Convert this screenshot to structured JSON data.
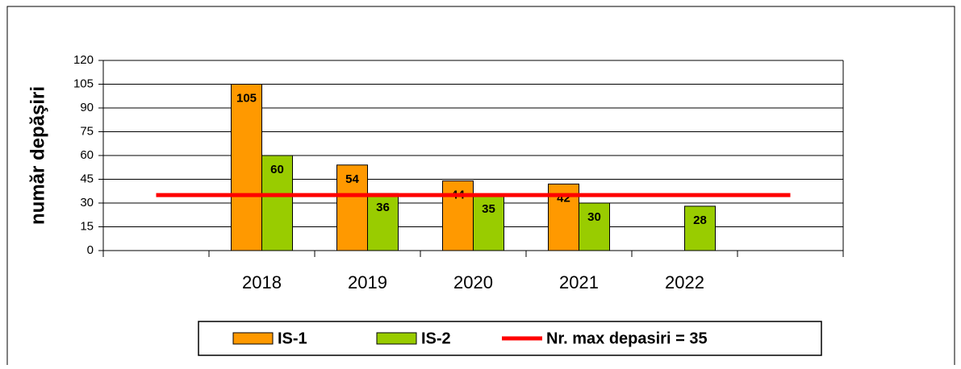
{
  "chart_data": {
    "type": "bar",
    "y_label": "număr depăşiri",
    "categories": [
      null,
      "2018",
      "2019",
      "2020",
      "2021",
      "2022",
      null
    ],
    "series": [
      {
        "name": "IS-1",
        "color": "#ff9900",
        "values": [
          null,
          105,
          54,
          44,
          42,
          null,
          null
        ]
      },
      {
        "name": "IS-2",
        "color": "#99cc00",
        "values": [
          null,
          60,
          36,
          35,
          30,
          28,
          null
        ]
      },
      {
        "name": "Nr. max depasiri = 35",
        "color": "#ff0000",
        "type": "line",
        "values": [
          35,
          35,
          35,
          35,
          35,
          35,
          35
        ]
      }
    ],
    "ylim": [
      0,
      120
    ],
    "yticks": [
      0,
      15,
      30,
      45,
      60,
      75,
      90,
      105,
      120
    ],
    "grid": true
  }
}
